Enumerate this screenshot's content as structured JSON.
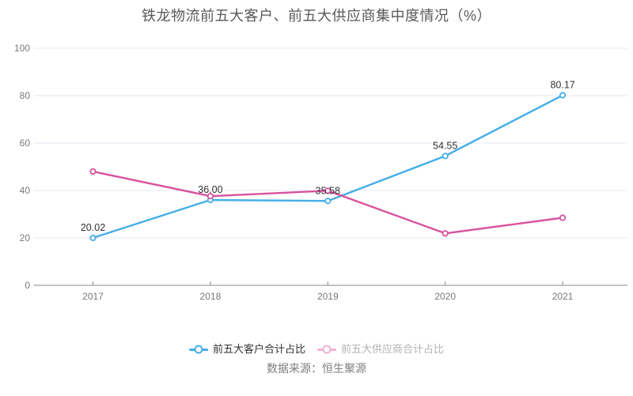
{
  "page": {
    "source_note": "数据来源：恒生聚源"
  },
  "colors": {
    "customer_line": "#45aee8",
    "supplier_line": "#d8529e",
    "supplier_legend": "#f3b1d8",
    "grid": "#e3e8f4",
    "axis": "#84878c",
    "axis_label": "#75787e",
    "value_label": "#333333",
    "title": "#595959",
    "source": "#7d7d7d",
    "legend_text_active": "#333333",
    "legend_text_muted": "#b3b3b3"
  },
  "chart_data": {
    "type": "line",
    "title": "铁龙物流前五大客户、前五大供应商集中度情况（%）",
    "categories": [
      "2017",
      "2018",
      "2019",
      "2020",
      "2021"
    ],
    "series": [
      {
        "name": "前五大客户合计占比",
        "color_key": "customer_line",
        "values": [
          20.02,
          36.0,
          35.58,
          54.55,
          80.17
        ],
        "value_labels": [
          "20.02",
          "36.00",
          "35.58",
          "54.55",
          "80.17"
        ],
        "show_value_labels": true
      },
      {
        "name": "前五大供应商合计占比",
        "color_key": "supplier_line",
        "values": [
          48.0,
          37.6,
          39.9,
          21.9,
          28.5
        ],
        "value_labels": [],
        "show_value_labels": false
      }
    ],
    "xlabel": "",
    "ylabel": "",
    "ylim": [
      0,
      100
    ],
    "yticks": [
      0,
      20,
      40,
      60,
      80,
      100
    ],
    "grid": true,
    "legend_position": "bottom"
  },
  "legend": {
    "items": [
      {
        "label": "前五大客户合计占比",
        "marker_color_key": "customer_line",
        "text_color_key": "legend_text_active"
      },
      {
        "label": "前五大供应商合计占比",
        "marker_color_key": "supplier_legend",
        "text_color_key": "legend_text_muted"
      }
    ]
  }
}
